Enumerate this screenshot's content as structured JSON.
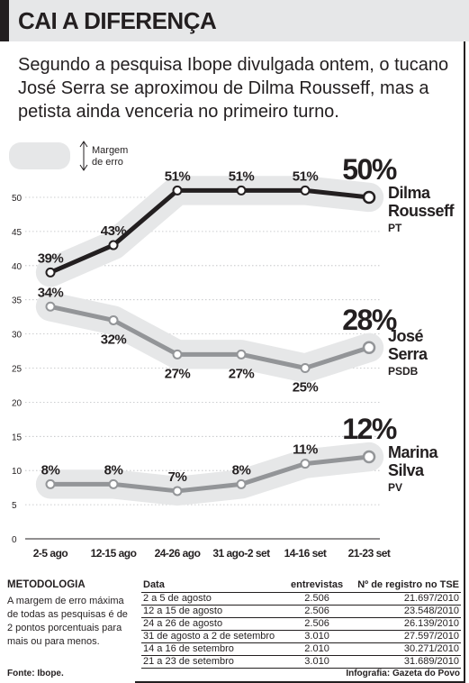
{
  "header": {
    "title": "CAI A DIFERENÇA",
    "subtitle": "Segundo a pesquisa Ibope divulgada ontem, o tucano José Serra se aproximou de Dilma Rousseff, mas a petista ainda venceria no primeiro turno."
  },
  "legend": {
    "margin_line1": "Margem",
    "margin_line2": "de erro"
  },
  "chart_data": {
    "type": "line",
    "categories": [
      "2-5 ago",
      "12-15 ago",
      "24-26 ago",
      "31 ago-2 set",
      "14-16 set",
      "21-23 set"
    ],
    "ylim": [
      0,
      50
    ],
    "yticks": [
      0,
      5,
      10,
      15,
      20,
      25,
      30,
      35,
      40,
      45,
      50
    ],
    "error_margin": 2,
    "series": [
      {
        "name": "Dilma Rousseff",
        "name_line1": "Dilma",
        "name_line2": "Rousseff",
        "party": "PT",
        "values": [
          39,
          43,
          51,
          51,
          51,
          50
        ],
        "labels": [
          "39%",
          "43%",
          "51%",
          "51%",
          "51%",
          "50%"
        ],
        "color": "#231f20"
      },
      {
        "name": "José Serra",
        "name_line1": "José",
        "name_line2": "Serra",
        "party": "PSDB",
        "values": [
          34,
          32,
          27,
          27,
          25,
          28
        ],
        "labels": [
          "34%",
          "32%",
          "27%",
          "27%",
          "25%",
          "28%"
        ],
        "color": "#939598"
      },
      {
        "name": "Marina Silva",
        "name_line1": "Marina",
        "name_line2": "Silva",
        "party": "PV",
        "values": [
          8,
          8,
          7,
          8,
          11,
          12
        ],
        "labels": [
          "8%",
          "8%",
          "7%",
          "8%",
          "11%",
          "12%"
        ],
        "color": "#939598"
      }
    ],
    "band_color": "#e6e7e8"
  },
  "methodology": {
    "title": "METODOLOGIA",
    "text": "A margem de erro máxima de todas as pesquisas é de 2 pontos porcentuais para mais ou para menos."
  },
  "registry": {
    "headers": [
      "Data",
      "entrevistas",
      "Nº de registro no TSE"
    ],
    "rows": [
      [
        "2 a 5 de agosto",
        "2.506",
        "21.697/2010"
      ],
      [
        "12 a 15 de agosto",
        "2.506",
        "23.548/2010"
      ],
      [
        "24 a 26 de agosto",
        "2.506",
        "26.139/2010"
      ],
      [
        "31 de agosto a 2 de setembro",
        "3.010",
        "27.597/2010"
      ],
      [
        "14 a 16 de setembro",
        "2.010",
        "30.271/2010"
      ],
      [
        "21 a 23 de setembro",
        "3.010",
        "31.689/2010"
      ]
    ]
  },
  "footer": {
    "source": "Fonte: Ibope.",
    "credit": "Infografia: Gazeta do Povo"
  }
}
